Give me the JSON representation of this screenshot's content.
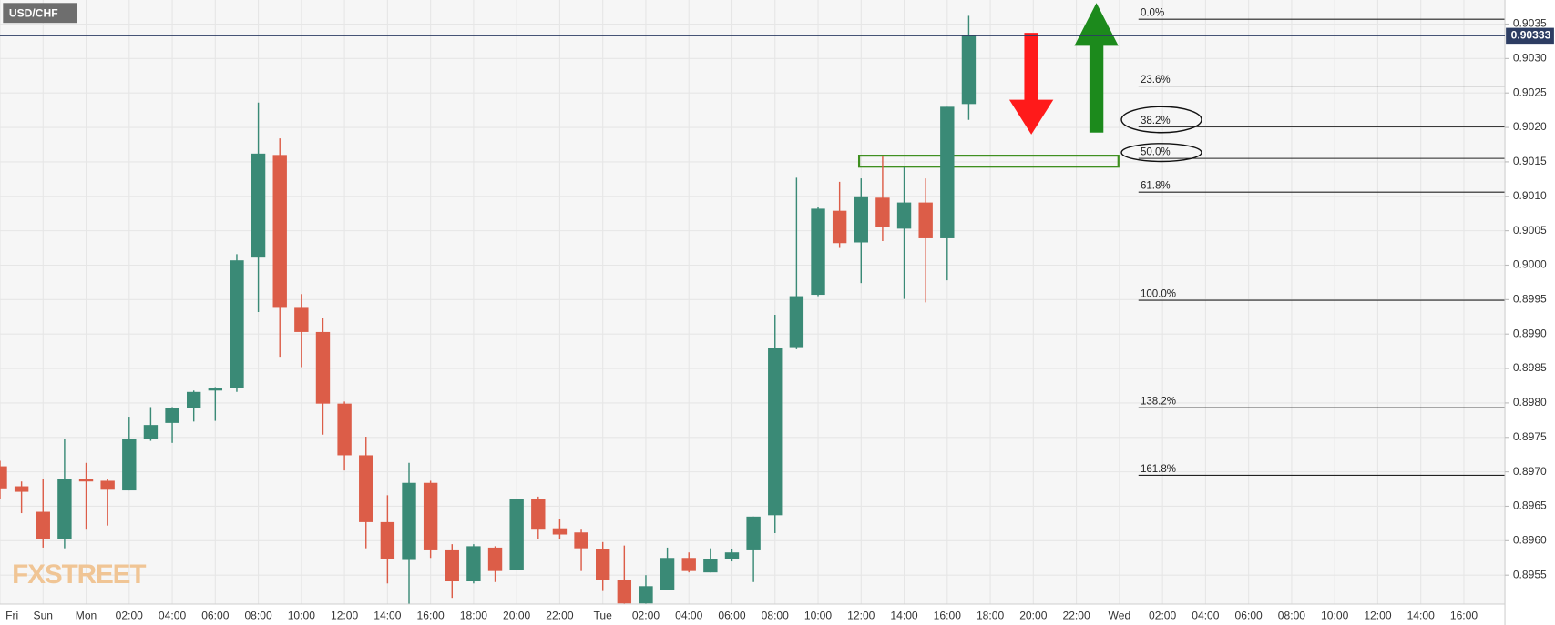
{
  "chart_data": {
    "type": "candlestick",
    "title": "USD/CHF",
    "watermark": "FXSTREET",
    "categories": [
      "Fri",
      null,
      "Sun",
      null,
      "Mon",
      null,
      "02:00",
      null,
      "04:00",
      null,
      "06:00",
      null,
      "08:00",
      null,
      "10:00",
      null,
      "12:00",
      null,
      "14:00",
      null,
      "16:00",
      null,
      "18:00",
      null,
      "20:00",
      null,
      "22:00",
      null,
      "Tue",
      null,
      "02:00",
      null,
      "04:00",
      null,
      "06:00",
      null,
      "08:00",
      null,
      "10:00",
      null,
      "12:00",
      null,
      "14:00",
      null,
      "16:00",
      null,
      "18:00",
      null,
      "20:00",
      null,
      "22:00",
      null,
      "Wed",
      null,
      "02:00",
      null,
      "04:00",
      null,
      "06:00",
      null,
      "08:00",
      null,
      "10:00",
      null,
      "12:00",
      null,
      "14:00",
      null,
      "16:00",
      null
    ],
    "open": [
      0.89708,
      0.89679,
      0.89642,
      0.89602,
      0.89689,
      0.89687,
      0.89673,
      0.89748,
      0.89771,
      0.89792,
      0.89818,
      0.89822,
      0.90011,
      0.9016,
      0.89938,
      0.89903,
      0.89799,
      0.89724,
      0.89627,
      0.89572,
      0.89684,
      0.89586,
      0.89541,
      0.8959,
      0.89557,
      0.8966,
      0.89618,
      0.89612,
      0.89588,
      0.89543,
      0.89509,
      0.89528,
      0.89575,
      0.89554,
      0.89573,
      0.89586,
      0.89637,
      0.89881,
      0.89957,
      0.90079,
      0.90033,
      0.90098,
      0.90053,
      0.90091,
      0.90039,
      0.90234,
      null,
      null,
      null,
      null,
      null,
      null,
      null,
      null,
      null,
      null,
      null,
      null,
      null,
      null,
      null,
      null,
      null,
      null,
      null,
      null,
      null,
      null,
      null,
      null
    ],
    "high": [
      0.89716,
      0.89686,
      0.8969,
      0.89748,
      0.89713,
      0.8969,
      0.8978,
      0.89794,
      0.89794,
      0.89818,
      0.89823,
      0.90016,
      0.90236,
      0.90184,
      0.89958,
      0.89923,
      0.89802,
      0.89751,
      0.89666,
      0.89713,
      0.89687,
      0.89595,
      0.89595,
      0.89592,
      0.8966,
      0.89664,
      0.89631,
      0.89616,
      0.89598,
      0.89593,
      0.8955,
      0.8959,
      0.89583,
      0.89589,
      0.89588,
      0.89635,
      0.89928,
      0.90127,
      0.90084,
      0.90121,
      0.90126,
      0.90158,
      0.90142,
      0.90126,
      0.9023,
      0.90362,
      null,
      null,
      null,
      null,
      null,
      null,
      null,
      null,
      null,
      null,
      null,
      null,
      null,
      null,
      null,
      null,
      null,
      null,
      null,
      null,
      null,
      null,
      null,
      null
    ],
    "low": [
      0.89661,
      0.8964,
      0.8959,
      0.89589,
      0.89616,
      0.89622,
      0.89673,
      0.89745,
      0.89742,
      0.89773,
      0.89774,
      0.89816,
      0.89932,
      0.89867,
      0.89852,
      0.89754,
      0.89702,
      0.89589,
      0.89538,
      0.89508,
      0.89575,
      0.89517,
      0.89538,
      0.8954,
      0.89557,
      0.89603,
      0.89603,
      0.89556,
      0.89527,
      0.89508,
      0.89508,
      0.89528,
      0.89554,
      0.89554,
      0.8957,
      0.8954,
      0.89611,
      0.89878,
      0.89955,
      0.90025,
      0.89974,
      0.90035,
      0.89951,
      0.89946,
      0.89978,
      0.90211,
      null,
      null,
      null,
      null,
      null,
      null,
      null,
      null,
      null,
      null,
      null,
      null,
      null,
      null,
      null,
      null,
      null,
      null,
      null,
      null,
      null,
      null,
      null,
      null
    ],
    "close": [
      0.89676,
      0.89671,
      0.89602,
      0.8969,
      0.89686,
      0.89674,
      0.89748,
      0.89768,
      0.89792,
      0.89816,
      0.89821,
      0.90007,
      0.90162,
      0.89938,
      0.89903,
      0.89799,
      0.89724,
      0.89627,
      0.89573,
      0.89684,
      0.89586,
      0.89541,
      0.89592,
      0.89556,
      0.8966,
      0.89616,
      0.89609,
      0.89589,
      0.89543,
      0.89509,
      0.89534,
      0.89575,
      0.89556,
      0.89573,
      0.89583,
      0.89635,
      0.8988,
      0.89955,
      0.90082,
      0.90032,
      0.901,
      0.90055,
      0.90091,
      0.90039,
      0.9023,
      0.90333,
      null,
      null,
      null,
      null,
      null,
      null,
      null,
      null,
      null,
      null,
      null,
      null,
      null,
      null,
      null,
      null,
      null,
      null,
      null,
      null,
      null,
      null,
      null,
      null
    ],
    "up_color": "#3a8a76",
    "down_color": "#dc5d48",
    "ylim": [
      0.89508,
      0.90385
    ],
    "yticks": [
      0.8955,
      {
        "value": 0.896,
        "label": "0.8960"
      },
      0.8965,
      {
        "value": 0.897,
        "label": "0.8970"
      },
      0.8975,
      {
        "value": 0.898,
        "label": "0.8980"
      },
      0.8985,
      {
        "value": 0.899,
        "label": "0.8990"
      },
      0.8995,
      {
        "value": 0.9,
        "label": "0.9000"
      },
      0.9005,
      {
        "value": 0.901,
        "label": "0.9010"
      },
      0.9015,
      {
        "value": 0.902,
        "label": "0.9020"
      },
      0.9025,
      {
        "value": 0.903,
        "label": "0.9030"
      },
      0.9035
    ],
    "grid": true,
    "last_price": 0.90333,
    "fib_levels": [
      {
        "label": "0.0%",
        "value": 0.90357
      },
      {
        "label": "23.6%",
        "value": 0.9026
      },
      {
        "label": "38.2%",
        "value": 0.90201
      },
      {
        "label": "50.0%",
        "value": 0.90155
      },
      {
        "label": "61.8%",
        "value": 0.90106
      },
      {
        "label": "100.0%",
        "value": 0.89949
      },
      {
        "label": "138.2%",
        "value": 0.89793
      },
      {
        "label": "161.8%",
        "value": 0.89695
      }
    ],
    "zone": {
      "low": 0.90143,
      "high": 0.90159,
      "color": "#3f8f1f"
    }
  }
}
